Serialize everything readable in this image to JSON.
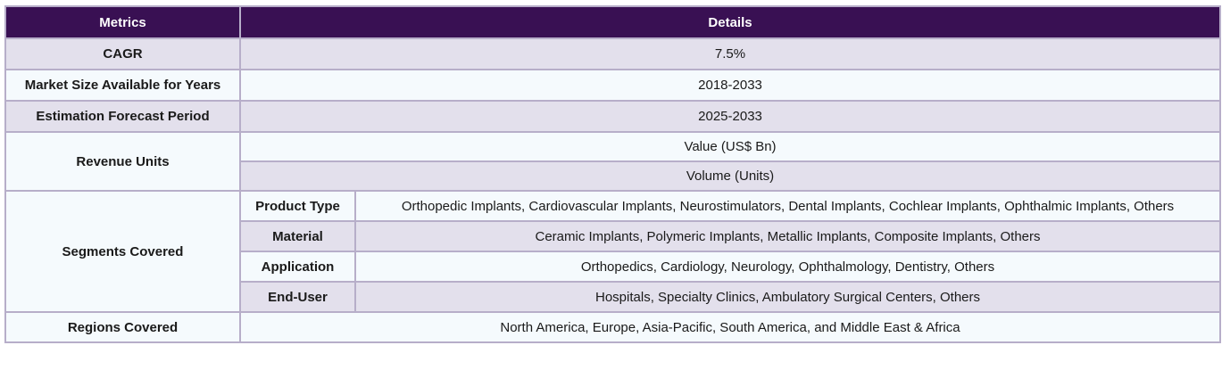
{
  "header": {
    "col1": "Metrics",
    "col2": "Details"
  },
  "rows": {
    "cagr": {
      "label": "CAGR",
      "value": "7.5%"
    },
    "market_size": {
      "label": "Market Size Available for Years",
      "value": "2018-2033"
    },
    "forecast": {
      "label": "Estimation Forecast Period",
      "value": "2025-2033"
    },
    "revenue_units": {
      "label": "Revenue Units",
      "values": [
        "Value (US$ Bn)",
        "Volume (Units)"
      ]
    },
    "segments": {
      "label": "Segments Covered",
      "items": [
        {
          "name": "Product Type",
          "value": "Orthopedic Implants, Cardiovascular Implants, Neurostimulators, Dental Implants, Cochlear Implants, Ophthalmic Implants, Others"
        },
        {
          "name": "Material",
          "value": "Ceramic Implants, Polymeric Implants, Metallic Implants, Composite Implants, Others"
        },
        {
          "name": "Application",
          "value": "Orthopedics, Cardiology, Neurology, Ophthalmology, Dentistry, Others"
        },
        {
          "name": "End-User",
          "value": "Hospitals, Specialty Clinics, Ambulatory Surgical Centers, Others"
        }
      ]
    },
    "regions": {
      "label": "Regions Covered",
      "value": "North America, Europe, Asia-Pacific, South America, and Middle East & Africa"
    }
  },
  "colors": {
    "header_bg": "#391053",
    "row_lavender": "#e3e0ec",
    "row_white": "#f5fafd",
    "border": "#b7aec9"
  }
}
